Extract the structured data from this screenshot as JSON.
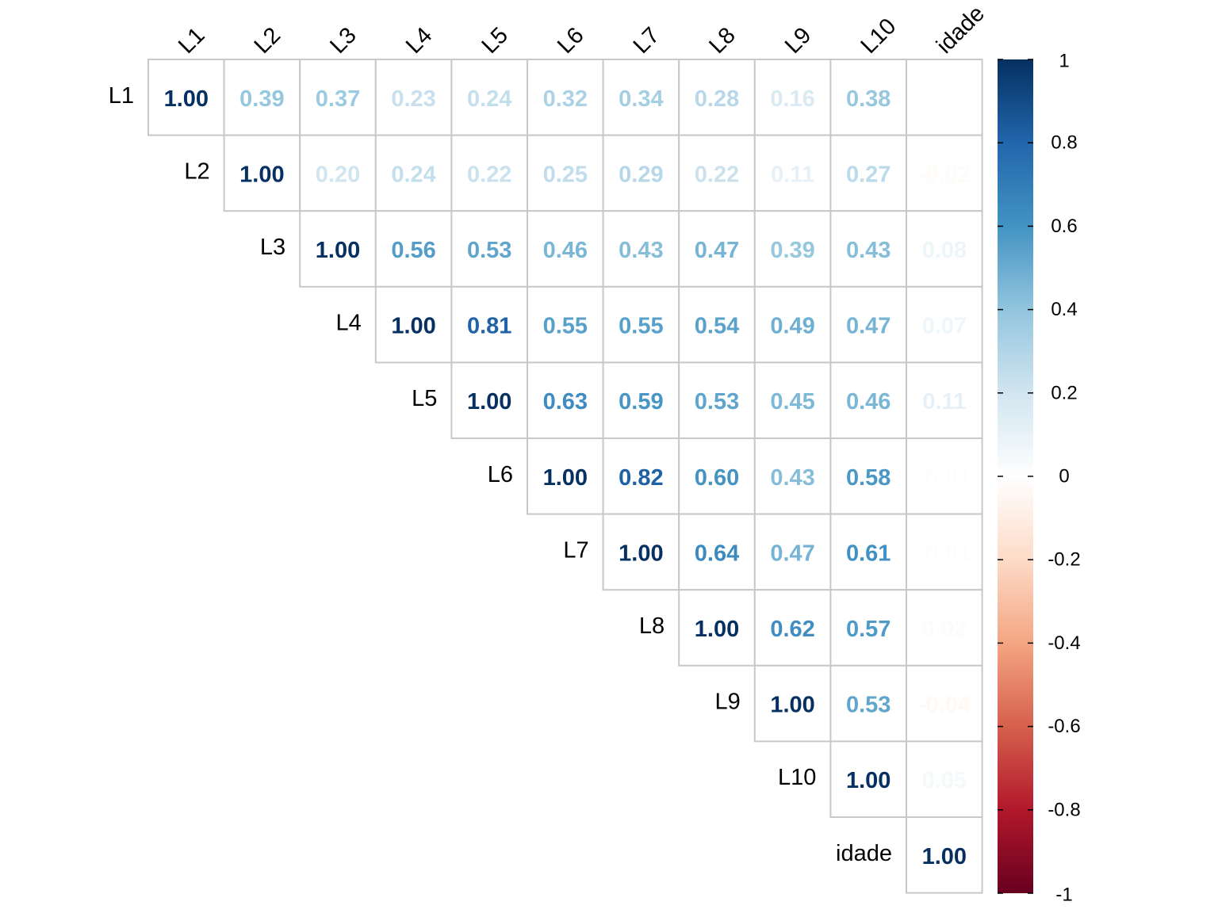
{
  "chart_data": {
    "type": "heatmap",
    "subtype": "correlation-matrix-upper",
    "variables": [
      "L1",
      "L2",
      "L3",
      "L4",
      "L5",
      "L6",
      "L7",
      "L8",
      "L9",
      "L10",
      "idade"
    ],
    "matrix": [
      [
        1.0,
        0.39,
        0.37,
        0.23,
        0.24,
        0.32,
        0.34,
        0.28,
        0.16,
        0.38,
        0.0
      ],
      [
        null,
        1.0,
        0.2,
        0.24,
        0.22,
        0.25,
        0.29,
        0.22,
        0.11,
        0.27,
        -0.02
      ],
      [
        null,
        null,
        1.0,
        0.56,
        0.53,
        0.46,
        0.43,
        0.47,
        0.39,
        0.43,
        0.08
      ],
      [
        null,
        null,
        null,
        1.0,
        0.81,
        0.55,
        0.55,
        0.54,
        0.49,
        0.47,
        0.07
      ],
      [
        null,
        null,
        null,
        null,
        1.0,
        0.63,
        0.59,
        0.53,
        0.45,
        0.46,
        0.11
      ],
      [
        null,
        null,
        null,
        null,
        null,
        1.0,
        0.82,
        0.6,
        0.43,
        0.58,
        -0.01
      ],
      [
        null,
        null,
        null,
        null,
        null,
        null,
        1.0,
        0.64,
        0.47,
        0.61,
        -0.01
      ],
      [
        null,
        null,
        null,
        null,
        null,
        null,
        null,
        1.0,
        0.62,
        0.57,
        0.02
      ],
      [
        null,
        null,
        null,
        null,
        null,
        null,
        null,
        null,
        1.0,
        0.53,
        -0.04
      ],
      [
        null,
        null,
        null,
        null,
        null,
        null,
        null,
        null,
        null,
        1.0,
        0.05
      ],
      [
        null,
        null,
        null,
        null,
        null,
        null,
        null,
        null,
        null,
        null,
        1.0
      ]
    ],
    "colorbar": {
      "range": [
        -1,
        1
      ],
      "ticks": [
        "1",
        "0.8",
        "0.6",
        "0.4",
        "0.2",
        "0",
        "-0.2",
        "-0.4",
        "-0.6",
        "-0.8",
        "-1"
      ],
      "tick_values": [
        1,
        0.8,
        0.6,
        0.4,
        0.2,
        0,
        -0.2,
        -0.4,
        -0.6,
        -0.8,
        -1
      ],
      "colors": [
        "#67001F",
        "#B2182B",
        "#D6604D",
        "#F4A582",
        "#FDDBC7",
        "#FFFFFF",
        "#D1E5F0",
        "#92C5DE",
        "#4393C3",
        "#2166AC",
        "#053061"
      ]
    },
    "title": "",
    "xlabel": "",
    "ylabel": ""
  }
}
